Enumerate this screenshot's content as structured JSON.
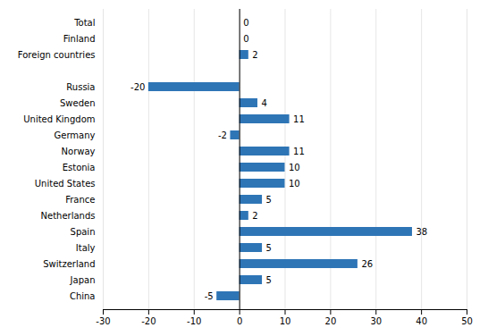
{
  "chart_data": {
    "type": "bar",
    "orientation": "horizontal",
    "categories": [
      "Total",
      "Finland",
      "Foreign countries",
      null,
      "Russia",
      "Sweden",
      "United Kingdom",
      "Germany",
      "Norway",
      "Estonia",
      "United States",
      "France",
      "Netherlands",
      "Spain",
      "Italy",
      "Switzerland",
      "Japan",
      "China"
    ],
    "values": [
      0,
      0,
      2,
      null,
      -20,
      4,
      11,
      -2,
      11,
      10,
      10,
      5,
      2,
      38,
      5,
      26,
      5,
      -5
    ],
    "color": "#2E75B6",
    "xlim": [
      -30,
      50
    ],
    "xticks": [
      -30,
      -20,
      -10,
      0,
      10,
      20,
      30,
      40,
      50
    ],
    "grid": true,
    "data_labels": true
  }
}
